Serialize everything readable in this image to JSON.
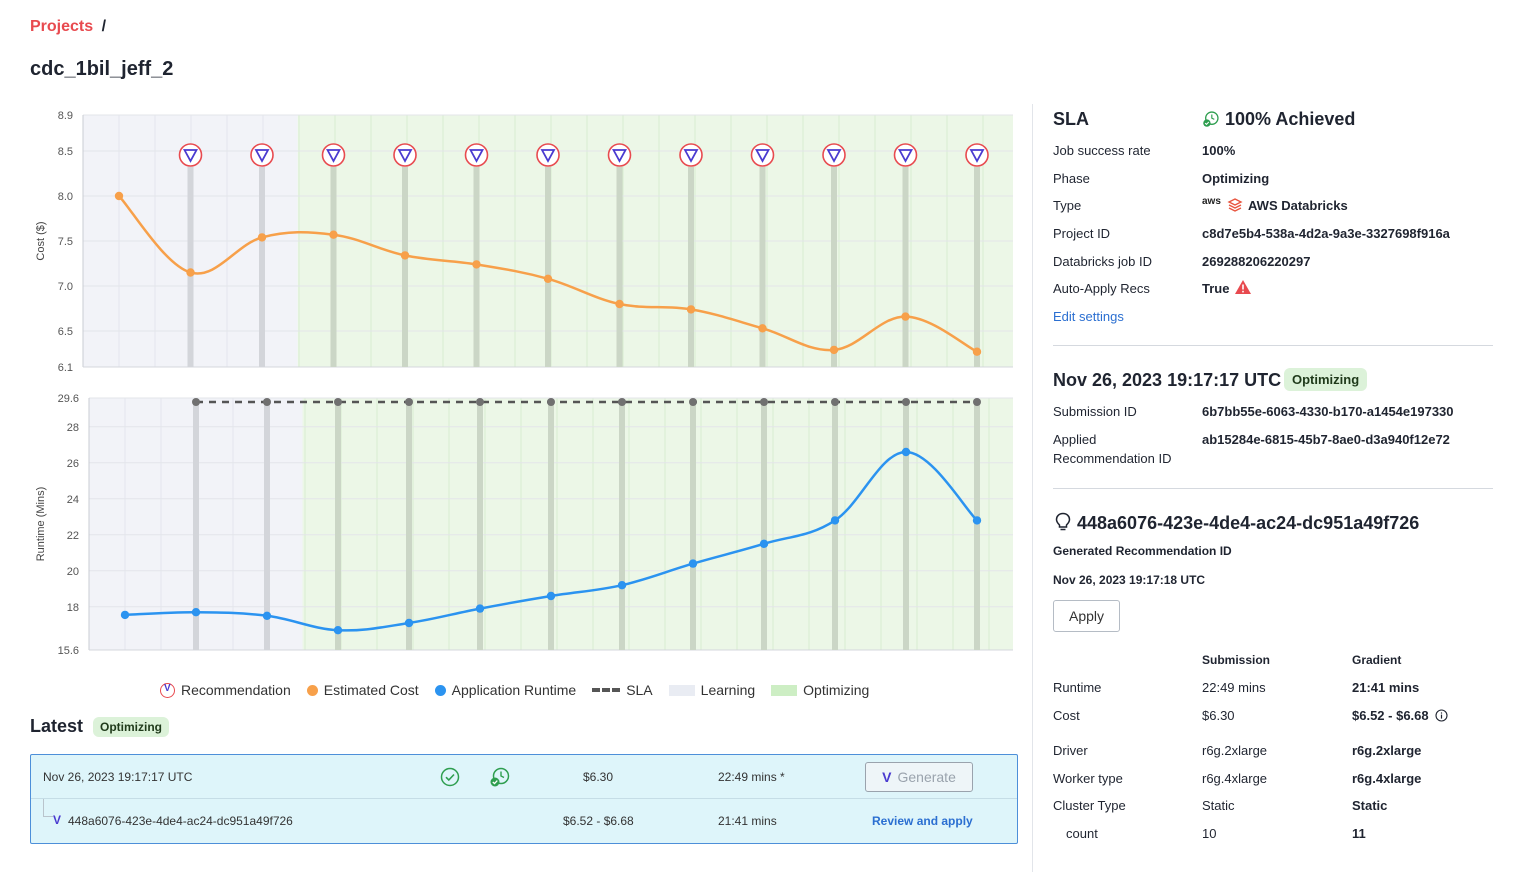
{
  "breadcrumb": {
    "projects_label": "Projects",
    "separator": "/"
  },
  "page_title": "cdc_1bil_jeff_2",
  "legend": {
    "recommendation": "Recommendation",
    "estimated_cost": "Estimated Cost",
    "application_runtime": "Application Runtime",
    "sla": "SLA",
    "learning": "Learning",
    "optimizing": "Optimizing"
  },
  "colors": {
    "cost": "#f7a04a",
    "runtime": "#2b93f0",
    "learning_bg": "#eef0f6",
    "optimizing_bg": "#e3f4dc",
    "accent": "#e84a4f",
    "link": "#2b6fd1"
  },
  "chart_data": [
    {
      "type": "line",
      "ylabel": "Cost ($)",
      "ylim": [
        6.1,
        8.9
      ],
      "yticks": [
        "8.9",
        "8.5",
        "8.0",
        "7.5",
        "7.0",
        "6.5",
        "6.1"
      ],
      "ytick_values": [
        8.9,
        8.5,
        8.0,
        7.5,
        7.0,
        6.5,
        6.1
      ],
      "x": [
        0,
        1,
        2,
        3,
        4,
        5,
        6,
        7,
        8,
        9,
        10,
        11,
        12
      ],
      "learning_until_x": 2.5,
      "recommendation_x": [
        1,
        2,
        3,
        4,
        5,
        6,
        7,
        8,
        9,
        10,
        11,
        12
      ],
      "series": [
        {
          "name": "Estimated Cost",
          "values": [
            8.0,
            7.15,
            7.54,
            7.57,
            7.34,
            7.24,
            7.08,
            6.8,
            6.74,
            6.53,
            6.29,
            6.66,
            6.27
          ]
        }
      ]
    },
    {
      "type": "line",
      "ylabel": "Runtime (Mins)",
      "ylim": [
        15.6,
        29.6
      ],
      "yticks": [
        "29.6",
        "28",
        "26",
        "24",
        "22",
        "20",
        "18",
        "15.6"
      ],
      "ytick_values": [
        29.6,
        28,
        26,
        24,
        22,
        20,
        18,
        15.6
      ],
      "x": [
        0,
        1,
        2,
        3,
        4,
        5,
        6,
        7,
        8,
        9,
        10,
        11,
        12
      ],
      "learning_until_x": 2.5,
      "sla_value": 29.6,
      "sla_x": [
        1,
        2,
        3,
        4,
        5,
        6,
        7,
        8,
        9,
        10,
        11,
        12
      ],
      "series": [
        {
          "name": "Application Runtime",
          "values": [
            17.55,
            17.7,
            17.5,
            16.7,
            17.1,
            17.9,
            18.6,
            19.2,
            20.4,
            21.5,
            22.8,
            26.6,
            22.8
          ]
        }
      ]
    }
  ],
  "latest": {
    "title": "Latest",
    "badge": "Optimizing",
    "row1": {
      "timestamp": "Nov 26, 2023 19:17:17 UTC",
      "cost": "$6.30",
      "runtime": "22:49 mins *",
      "generate_label": "Generate"
    },
    "row2": {
      "recommendation_id": "448a6076-423e-4de4-ac24-dc951a49f726",
      "cost_range": "$6.52 - $6.68",
      "runtime": "21:41 mins",
      "review_label": "Review and apply"
    }
  },
  "sla_panel": {
    "title": "SLA",
    "achieved": "100% Achieved",
    "rows": [
      {
        "label": "Job success rate",
        "value": "100%"
      },
      {
        "label": "Phase",
        "value": "Optimizing"
      },
      {
        "label": "Type",
        "value": "AWS Databricks",
        "icon_text": "aws"
      },
      {
        "label": "Project ID",
        "value": "c8d7e5b4-538a-4d2a-9a3e-3327698f916a"
      },
      {
        "label": "Databricks job ID",
        "value": "269288206220297"
      },
      {
        "label": "Auto-Apply Recs",
        "value": "True"
      }
    ],
    "edit_settings": "Edit settings"
  },
  "submission_panel": {
    "timestamp": "Nov 26, 2023 19:17:17 UTC",
    "badge": "Optimizing",
    "submission_id_label": "Submission ID",
    "submission_id": "6b7bb55e-6063-4330-b170-a1454e197330",
    "applied_label_line1": "Applied",
    "applied_label_line2": "Recommendation ID",
    "applied_id": "ab15284e-6815-45b7-8ae0-d3a940f12e72"
  },
  "recommendation_panel": {
    "id": "448a6076-423e-4de4-ac24-dc951a49f726",
    "subtitle": "Generated Recommendation ID",
    "timestamp": "Nov 26, 2023 19:17:18 UTC",
    "apply_label": "Apply",
    "col_submission": "Submission",
    "col_gradient": "Gradient",
    "rows": [
      {
        "label": "Runtime",
        "submission": "22:49 mins",
        "gradient": "21:41 mins"
      },
      {
        "label": "Cost",
        "submission": "$6.30",
        "gradient": "$6.52 - $6.68"
      },
      {
        "label": "Driver",
        "submission": "r6g.2xlarge",
        "gradient": "r6g.2xlarge"
      },
      {
        "label": "Worker type",
        "submission": "r6g.4xlarge",
        "gradient": "r6g.4xlarge"
      },
      {
        "label": "Cluster Type",
        "submission": "Static",
        "gradient": "Static"
      },
      {
        "label": "count",
        "submission": "10",
        "gradient": "11"
      }
    ]
  }
}
